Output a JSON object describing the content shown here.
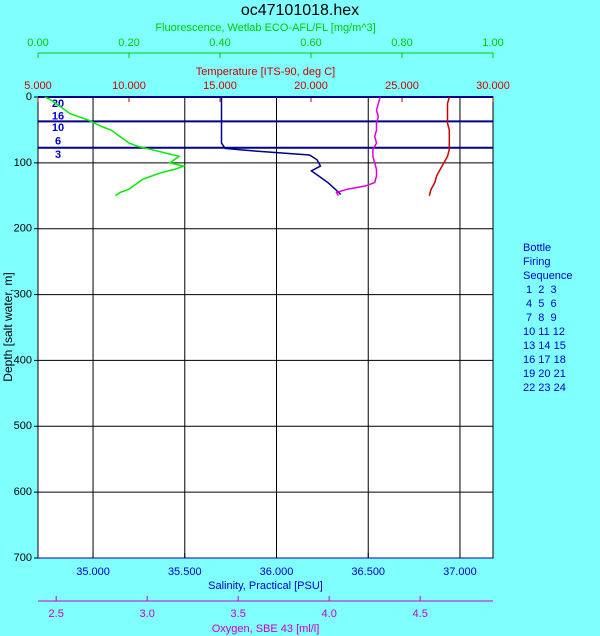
{
  "chart_data": {
    "type": "profile",
    "title": "oc47101018.hex",
    "y_label": "Depth [salt water, m]",
    "ylim": [
      0,
      700
    ],
    "y_reversed": true,
    "yticks": [
      0,
      100,
      200,
      300,
      400,
      500,
      600,
      700
    ],
    "grid": true,
    "x_axes": [
      {
        "label": "Fluorescence, Wetlab ECO-AFL/FL [mg/m^3]",
        "color": "#00cc00",
        "position": "top",
        "lim": [
          0,
          1
        ],
        "ticks": [
          {
            "value": 0,
            "label": "0.00"
          },
          {
            "value": 0.2,
            "label": "0.20"
          },
          {
            "value": 0.4,
            "label": "0.40"
          },
          {
            "value": 0.6,
            "label": "0.60"
          },
          {
            "value": 0.8,
            "label": "0.80"
          },
          {
            "value": 1,
            "label": "1.00"
          }
        ]
      },
      {
        "label": "Temperature [ITS-90, deg C]",
        "color": "#cc0000",
        "position": "top",
        "lim": [
          5,
          30
        ],
        "ticks": [
          {
            "value": 5,
            "label": "5.000"
          },
          {
            "value": 10,
            "label": "10.000"
          },
          {
            "value": 15,
            "label": "15.000"
          },
          {
            "value": 20,
            "label": "20.000"
          },
          {
            "value": 25,
            "label": "25.000"
          },
          {
            "value": 30,
            "label": "30.000"
          }
        ]
      },
      {
        "label": "Salinity, Practical [PSU]",
        "color": "#0000cc",
        "position": "bottom",
        "lim": [
          34.7,
          37.18
        ],
        "grid": true,
        "ticks": [
          {
            "value": 35,
            "label": "35.000"
          },
          {
            "value": 35.5,
            "label": "35.500"
          },
          {
            "value": 36,
            "label": "36.000"
          },
          {
            "value": 36.5,
            "label": "36.500"
          },
          {
            "value": 37,
            "label": "37.000"
          }
        ]
      },
      {
        "label": "Oxygen, SBE 43 [ml/l]",
        "color": "#cc00cc",
        "position": "bottom",
        "lim": [
          2.4,
          4.9
        ],
        "ticks": [
          2.5,
          {
            "value": 3,
            "label": "3.0"
          },
          3.5,
          {
            "value": 4,
            "label": "4.0"
          },
          4.5
        ]
      }
    ],
    "series": [
      {
        "axis": 0,
        "color": "#00ee00",
        "depth": [
          0,
          5,
          10,
          15,
          20,
          25,
          30,
          35,
          40,
          45,
          50,
          55,
          60,
          65,
          70,
          75,
          80,
          85,
          90,
          95,
          100,
          105,
          110,
          115,
          120,
          125,
          130,
          135,
          140,
          145,
          150
        ],
        "values": [
          0.015,
          0.03,
          0.04,
          0.05,
          0.06,
          0.07,
          0.09,
          0.11,
          0.125,
          0.14,
          0.16,
          0.17,
          0.18,
          0.19,
          0.2,
          0.22,
          0.25,
          0.28,
          0.31,
          0.3,
          0.29,
          0.32,
          0.3,
          0.27,
          0.25,
          0.23,
          0.22,
          0.21,
          0.2,
          0.18,
          0.17
        ]
      },
      {
        "axis": 1,
        "color": "#cc0000",
        "depth": [
          0,
          10,
          20,
          30,
          40,
          50,
          60,
          70,
          80,
          90,
          100,
          110,
          120,
          130,
          140,
          150
        ],
        "values": [
          27.6,
          27.5,
          27.5,
          27.5,
          27.5,
          27.6,
          27.6,
          27.6,
          27.6,
          27.5,
          27.3,
          27.1,
          26.9,
          26.8,
          26.6,
          26.5
        ]
      },
      {
        "axis": 2,
        "color": "#00008b",
        "depth": [
          0,
          10,
          20,
          30,
          40,
          50,
          60,
          70,
          78,
          82,
          88,
          95,
          105,
          112,
          120,
          130,
          140,
          148
        ],
        "values": [
          35.7,
          35.7,
          35.7,
          35.7,
          35.7,
          35.7,
          35.7,
          35.7,
          35.72,
          35.88,
          36.18,
          36.22,
          36.24,
          36.19,
          36.23,
          36.28,
          36.32,
          36.35
        ]
      },
      {
        "axis": 3,
        "color": "#dd00dd",
        "depth": [
          0,
          10,
          20,
          30,
          40,
          50,
          60,
          70,
          80,
          90,
          100,
          110,
          120,
          130,
          135,
          140,
          145,
          150
        ],
        "values": [
          4.28,
          4.27,
          4.26,
          4.27,
          4.26,
          4.26,
          4.25,
          4.26,
          4.24,
          4.24,
          4.25,
          4.26,
          4.26,
          4.25,
          4.2,
          4.1,
          4.04,
          4.05
        ]
      }
    ],
    "bottle_depths": [
      0,
      37,
      77
    ],
    "bottle_labels": [
      {
        "depth": 11,
        "label": "20"
      },
      {
        "depth": 30,
        "label": "16"
      },
      {
        "depth": 47,
        "label": "10"
      },
      {
        "depth": 68,
        "label": "6"
      },
      {
        "depth": 88,
        "label": "3"
      }
    ],
    "sequence_title": [
      "Bottle",
      "Firing",
      "Sequence"
    ],
    "sequence_rows": [
      " 1  2  3",
      " 4  5  6",
      " 7  8  9",
      "10 11 12",
      "13 14 15",
      "16 17 18",
      "19 20 21",
      "22 23 24"
    ]
  }
}
